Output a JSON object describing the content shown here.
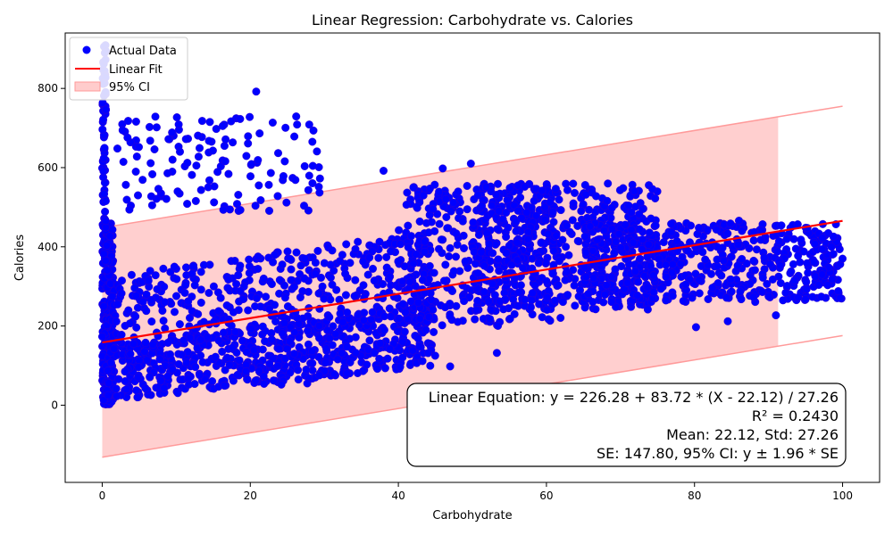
{
  "chart_data": {
    "type": "scatter",
    "title": "Linear Regression: Carbohydrate vs. Calories",
    "xlabel": "Carbohydrate",
    "ylabel": "Calories",
    "xlim": [
      -5,
      105
    ],
    "ylim": [
      -195,
      940
    ],
    "xticks": [
      0,
      20,
      40,
      60,
      80,
      100
    ],
    "yticks": [
      0,
      200,
      400,
      600,
      800
    ],
    "legend_position": "upper-left",
    "legend": [
      "Actual Data",
      "Linear Fit",
      "95% CI"
    ],
    "colors": {
      "points": "#0000ff",
      "points_edge": "#3a00c8",
      "fit": "#ff0000",
      "ci_fill": "#ffcccc",
      "ci_edge": "#ff9a9a"
    },
    "fit": {
      "intercept": 226.28,
      "coef": 83.72,
      "mean": 22.12,
      "std": 27.26
    },
    "ci": {
      "half_width": 289.688,
      "x_range": [
        0,
        91.3
      ]
    },
    "ci_upper_visible_segment": {
      "x_range": [
        91.3,
        100
      ]
    },
    "annotation": [
      "Linear Equation: y = 226.28 + 83.72 * (X - 22.12) / 27.26",
      "R² = 0.2430",
      "Mean: 22.12, Std: 27.26",
      "SE: 147.80, 95% CI: y ± 1.96 * SE"
    ],
    "series": [
      {
        "name": "Actual Data",
        "clusters": [
          {
            "x_min": 0,
            "x_max": 1.5,
            "y_min": 0,
            "y_max": 460,
            "n": 260
          },
          {
            "x_min": 0,
            "x_max": 0.5,
            "y_min": 460,
            "y_max": 910,
            "n": 60
          },
          {
            "x_min": 0,
            "x_max": 45,
            "y_min": 10,
            "y_max": 160,
            "n": 650,
            "rise": 2.0
          },
          {
            "x_min": 1,
            "x_max": 45,
            "y_min": 120,
            "y_max": 330,
            "n": 450,
            "rise": 2.5
          },
          {
            "x_min": 2,
            "x_max": 30,
            "y_min": 490,
            "y_max": 730,
            "n": 130
          },
          {
            "x_min": 40,
            "x_max": 62,
            "y_min": 200,
            "y_max": 560,
            "n": 350
          },
          {
            "x_min": 50,
            "x_max": 75,
            "y_min": 240,
            "y_max": 560,
            "n": 500
          },
          {
            "x_min": 65,
            "x_max": 100,
            "y_min": 260,
            "y_max": 460,
            "n": 550
          }
        ],
        "points": [
          [
            20.8,
            792
          ],
          [
            47.0,
            98
          ],
          [
            53.3,
            132
          ],
          [
            80.2,
            197
          ],
          [
            95.0,
            267
          ],
          [
            24.2,
            52
          ],
          [
            27.7,
            55
          ],
          [
            91.0,
            227
          ],
          [
            84.5,
            212
          ],
          [
            86.0,
            466
          ],
          [
            98.5,
            400
          ],
          [
            100,
            370
          ],
          [
            10.5,
            640
          ],
          [
            11.5,
            612
          ],
          [
            29.0,
            641
          ],
          [
            38.0,
            592
          ],
          [
            46.0,
            598
          ],
          [
            49.8,
            610
          ],
          [
            13.5,
            718
          ],
          [
            3.5,
            718
          ],
          [
            9.5,
            620
          ]
        ]
      }
    ]
  }
}
